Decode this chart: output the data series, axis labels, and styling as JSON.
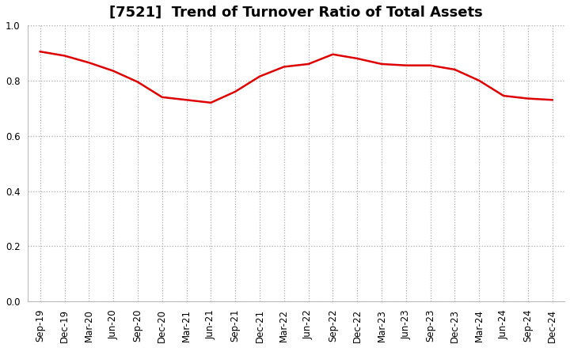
{
  "title": "[7521]  Trend of Turnover Ratio of Total Assets",
  "x_labels": [
    "Sep-19",
    "Dec-19",
    "Mar-20",
    "Jun-20",
    "Sep-20",
    "Dec-20",
    "Mar-21",
    "Jun-21",
    "Sep-21",
    "Dec-21",
    "Mar-22",
    "Jun-22",
    "Sep-22",
    "Dec-22",
    "Mar-23",
    "Jun-23",
    "Sep-23",
    "Dec-23",
    "Mar-24",
    "Jun-24",
    "Sep-24",
    "Dec-24"
  ],
  "y_values": [
    0.905,
    0.89,
    0.865,
    0.835,
    0.795,
    0.74,
    0.73,
    0.72,
    0.76,
    0.815,
    0.85,
    0.86,
    0.895,
    0.88,
    0.86,
    0.855,
    0.855,
    0.84,
    0.8,
    0.745,
    0.735,
    0.73
  ],
  "line_color": "#dd0000",
  "line_width": 1.8,
  "ylim": [
    0.0,
    1.0
  ],
  "yticks": [
    0.0,
    0.2,
    0.4,
    0.6,
    0.8,
    1.0
  ],
  "ytick_labels": [
    "0.0",
    "0.2",
    "0.4",
    "0.6",
    "0.8",
    "1.0"
  ],
  "background_color": "#ffffff",
  "grid_color": "#aaaaaa",
  "title_fontsize": 13,
  "tick_fontsize": 8.5
}
